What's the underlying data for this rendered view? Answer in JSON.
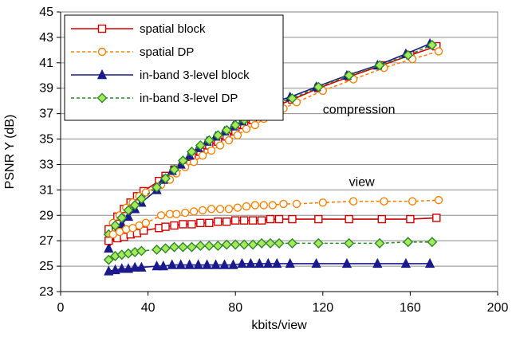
{
  "chart_data": {
    "type": "line",
    "title": "",
    "xlabel": "kbits/view",
    "ylabel": "PSNR Y (dB)",
    "xlim": [
      0,
      200
    ],
    "ylim": [
      23,
      45
    ],
    "x_ticks": [
      "0",
      "40",
      "80",
      "120",
      "160",
      "200"
    ],
    "y_ticks": [
      "23",
      "25",
      "27",
      "29",
      "31",
      "33",
      "35",
      "37",
      "39",
      "41",
      "43",
      "45"
    ],
    "grid": "horizontal",
    "legend_position": "top-left",
    "annotations": [
      {
        "text": "compression",
        "x": 120,
        "y": 37
      },
      {
        "text": "view",
        "x": 132,
        "y": 31.3
      }
    ],
    "series": [
      {
        "name": "spatial block",
        "color": "#d40000",
        "marker": "square",
        "dashed": false,
        "group": "compression",
        "points": [
          [
            22,
            27.9
          ],
          [
            26,
            28.9
          ],
          [
            29,
            29.5
          ],
          [
            32,
            30.0
          ],
          [
            35,
            30.5
          ],
          [
            38,
            30.9
          ],
          [
            45,
            31.7
          ],
          [
            48,
            32.1
          ],
          [
            52,
            32.6
          ],
          [
            56,
            33.1
          ],
          [
            60,
            33.6
          ],
          [
            64,
            34.0
          ],
          [
            68,
            34.5
          ],
          [
            72,
            34.8
          ],
          [
            76,
            35.2
          ],
          [
            80,
            35.6
          ],
          [
            84,
            36.1
          ],
          [
            88,
            36.5
          ],
          [
            92,
            36.9
          ],
          [
            96,
            37.3
          ],
          [
            100,
            37.7
          ],
          [
            106,
            38.1
          ],
          [
            118,
            39.0
          ],
          [
            132,
            39.9
          ],
          [
            147,
            40.8
          ],
          [
            160,
            41.6
          ],
          [
            172,
            42.3
          ]
        ]
      },
      {
        "name": "spatial DP",
        "color": "#ff8000",
        "marker": "circle",
        "dashed": true,
        "group": "compression",
        "points": [
          [
            24,
            28.4
          ],
          [
            27,
            29.0
          ],
          [
            30,
            29.6
          ],
          [
            33,
            30.0
          ],
          [
            36,
            30.5
          ],
          [
            39,
            30.8
          ],
          [
            46,
            31.4
          ],
          [
            50,
            31.8
          ],
          [
            53,
            32.3
          ],
          [
            57,
            32.8
          ],
          [
            61,
            33.2
          ],
          [
            65,
            33.7
          ],
          [
            69,
            34.1
          ],
          [
            73,
            34.5
          ],
          [
            77,
            34.9
          ],
          [
            81,
            35.3
          ],
          [
            85,
            35.8
          ],
          [
            89,
            36.1
          ],
          [
            93,
            36.6
          ],
          [
            97,
            37.0
          ],
          [
            102,
            37.4
          ],
          [
            108,
            37.9
          ],
          [
            120,
            38.8
          ],
          [
            134,
            39.7
          ],
          [
            148,
            40.6
          ],
          [
            161,
            41.3
          ],
          [
            173,
            41.9
          ]
        ]
      },
      {
        "name": "in-band 3-level block",
        "color": "#1a1a8c",
        "marker": "triangle",
        "dashed": false,
        "group": "compression",
        "points": [
          [
            22,
            26.4
          ],
          [
            25,
            27.5
          ],
          [
            28,
            28.3
          ],
          [
            31,
            28.9
          ],
          [
            34,
            29.5
          ],
          [
            37,
            30.0
          ],
          [
            44,
            31.0
          ],
          [
            47,
            31.8
          ],
          [
            51,
            32.5
          ],
          [
            55,
            33.0
          ],
          [
            59,
            33.7
          ],
          [
            63,
            34.3
          ],
          [
            67,
            34.8
          ],
          [
            71,
            35.2
          ],
          [
            75,
            35.6
          ],
          [
            79,
            36.0
          ],
          [
            83,
            36.4
          ],
          [
            87,
            36.8
          ],
          [
            91,
            37.2
          ],
          [
            95,
            37.6
          ],
          [
            99,
            38.0
          ],
          [
            105,
            38.3
          ],
          [
            117,
            39.1
          ],
          [
            131,
            40.0
          ],
          [
            145,
            40.8
          ],
          [
            158,
            41.7
          ],
          [
            169,
            42.5
          ]
        ]
      },
      {
        "name": "in-band 3-level DP",
        "color": "#2a8a2a",
        "marker": "diamond",
        "dashed": true,
        "group": "compression",
        "points": [
          [
            22,
            27.5
          ],
          [
            25,
            28.2
          ],
          [
            28,
            28.8
          ],
          [
            31,
            29.4
          ],
          [
            34,
            29.8
          ],
          [
            37,
            30.3
          ],
          [
            44,
            31.2
          ],
          [
            48,
            31.9
          ],
          [
            52,
            32.6
          ],
          [
            56,
            33.3
          ],
          [
            60,
            34.0
          ],
          [
            64,
            34.5
          ],
          [
            68,
            34.9
          ],
          [
            72,
            35.3
          ],
          [
            76,
            35.7
          ],
          [
            80,
            36.1
          ],
          [
            84,
            36.5
          ],
          [
            88,
            36.9
          ],
          [
            92,
            37.2
          ],
          [
            96,
            37.6
          ],
          [
            100,
            37.9
          ],
          [
            106,
            38.2
          ],
          [
            118,
            39.1
          ],
          [
            132,
            40.0
          ],
          [
            146,
            40.8
          ],
          [
            159,
            41.6
          ],
          [
            170,
            42.4
          ]
        ]
      },
      {
        "name": "spatial block",
        "color": "#d40000",
        "marker": "square",
        "dashed": false,
        "group": "view",
        "points": [
          [
            22,
            27.0
          ],
          [
            26,
            27.2
          ],
          [
            29,
            27.3
          ],
          [
            32,
            27.5
          ],
          [
            35,
            27.6
          ],
          [
            38,
            27.8
          ],
          [
            45,
            28.0
          ],
          [
            48,
            28.1
          ],
          [
            52,
            28.2
          ],
          [
            56,
            28.3
          ],
          [
            60,
            28.3
          ],
          [
            64,
            28.4
          ],
          [
            68,
            28.4
          ],
          [
            72,
            28.5
          ],
          [
            76,
            28.5
          ],
          [
            80,
            28.6
          ],
          [
            84,
            28.6
          ],
          [
            88,
            28.6
          ],
          [
            92,
            28.6
          ],
          [
            96,
            28.7
          ],
          [
            100,
            28.7
          ],
          [
            106,
            28.7
          ],
          [
            118,
            28.7
          ],
          [
            132,
            28.7
          ],
          [
            147,
            28.7
          ],
          [
            160,
            28.7
          ],
          [
            172,
            28.8
          ]
        ]
      },
      {
        "name": "spatial DP",
        "color": "#ff8000",
        "marker": "circle",
        "dashed": true,
        "group": "view",
        "points": [
          [
            24,
            27.5
          ],
          [
            27,
            27.7
          ],
          [
            30,
            27.9
          ],
          [
            33,
            28.0
          ],
          [
            36,
            28.2
          ],
          [
            39,
            28.4
          ],
          [
            46,
            29.0
          ],
          [
            50,
            29.1
          ],
          [
            53,
            29.1
          ],
          [
            57,
            29.2
          ],
          [
            61,
            29.3
          ],
          [
            65,
            29.4
          ],
          [
            69,
            29.5
          ],
          [
            73,
            29.5
          ],
          [
            77,
            29.5
          ],
          [
            81,
            29.6
          ],
          [
            85,
            29.7
          ],
          [
            89,
            29.8
          ],
          [
            93,
            29.8
          ],
          [
            97,
            29.8
          ],
          [
            102,
            29.9
          ],
          [
            108,
            29.9
          ],
          [
            120,
            30.0
          ],
          [
            134,
            30.1
          ],
          [
            148,
            30.1
          ],
          [
            161,
            30.1
          ],
          [
            173,
            30.2
          ]
        ]
      },
      {
        "name": "in-band 3-level block",
        "color": "#1a1a8c",
        "marker": "triangle",
        "dashed": false,
        "group": "view",
        "points": [
          [
            22,
            24.6
          ],
          [
            25,
            24.7
          ],
          [
            28,
            24.8
          ],
          [
            31,
            24.8
          ],
          [
            34,
            24.9
          ],
          [
            37,
            24.9
          ],
          [
            44,
            25.0
          ],
          [
            47,
            25.0
          ],
          [
            51,
            25.1
          ],
          [
            55,
            25.1
          ],
          [
            59,
            25.1
          ],
          [
            63,
            25.1
          ],
          [
            67,
            25.1
          ],
          [
            71,
            25.1
          ],
          [
            75,
            25.1
          ],
          [
            79,
            25.1
          ],
          [
            83,
            25.2
          ],
          [
            87,
            25.2
          ],
          [
            91,
            25.2
          ],
          [
            95,
            25.2
          ],
          [
            99,
            25.2
          ],
          [
            105,
            25.2
          ],
          [
            117,
            25.2
          ],
          [
            131,
            25.2
          ],
          [
            145,
            25.2
          ],
          [
            158,
            25.2
          ],
          [
            169,
            25.2
          ]
        ]
      },
      {
        "name": "in-band 3-level DP",
        "color": "#2a8a2a",
        "marker": "diamond",
        "dashed": true,
        "group": "view",
        "points": [
          [
            22,
            25.5
          ],
          [
            25,
            25.8
          ],
          [
            28,
            25.9
          ],
          [
            31,
            26.0
          ],
          [
            34,
            26.1
          ],
          [
            37,
            26.2
          ],
          [
            44,
            26.3
          ],
          [
            48,
            26.4
          ],
          [
            52,
            26.5
          ],
          [
            56,
            26.5
          ],
          [
            60,
            26.5
          ],
          [
            64,
            26.6
          ],
          [
            68,
            26.6
          ],
          [
            72,
            26.6
          ],
          [
            76,
            26.7
          ],
          [
            80,
            26.7
          ],
          [
            84,
            26.7
          ],
          [
            88,
            26.7
          ],
          [
            92,
            26.8
          ],
          [
            96,
            26.8
          ],
          [
            100,
            26.8
          ],
          [
            106,
            26.8
          ],
          [
            118,
            26.8
          ],
          [
            132,
            26.8
          ],
          [
            146,
            26.8
          ],
          [
            159,
            26.9
          ],
          [
            170,
            26.9
          ]
        ]
      }
    ]
  }
}
